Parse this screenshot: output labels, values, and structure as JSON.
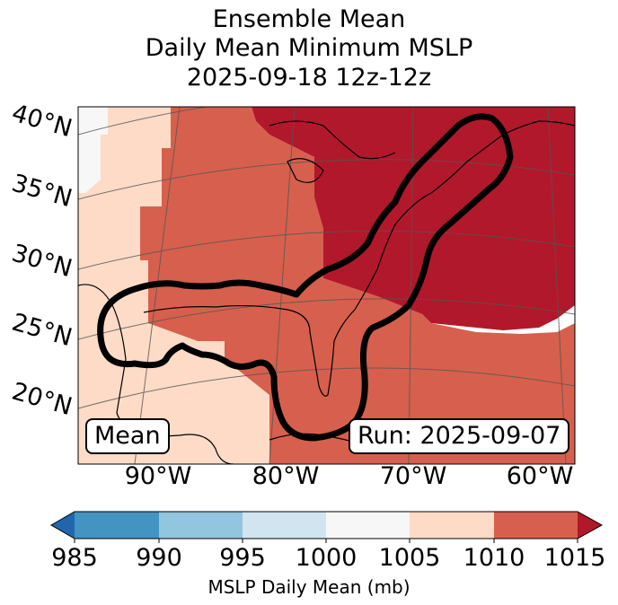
{
  "title": {
    "line1": "Ensemble Mean",
    "line2": "Daily Mean Minimum MSLP",
    "line3": "2025-09-18 12z-12z"
  },
  "map": {
    "lat_labels": [
      "40°N",
      "35°N",
      "30°N",
      "25°N",
      "20°N"
    ],
    "lon_labels": [
      "90°W",
      "80°W",
      "70°W",
      "60°W"
    ],
    "left_box": "Mean",
    "right_box": "Run: 2025-09-07",
    "regions": [
      {
        "name": "lightest-region",
        "mslp_range": "1000-1005"
      },
      {
        "name": "light-salmon-region",
        "mslp_range": "1005-1010"
      },
      {
        "name": "medium-red-region",
        "mslp_range": "1010-1015"
      },
      {
        "name": "dark-red-region",
        "mslp_range": ">1015"
      }
    ]
  },
  "colorbar": {
    "label": "MSLP Daily Mean (mb)",
    "ticks": [
      "985",
      "990",
      "995",
      "1000",
      "1005",
      "1010",
      "1015"
    ],
    "colors": {
      "below": "#2166ac",
      "c985_990": "#4393c3",
      "c990_995": "#92c5de",
      "c995_1000": "#d1e5f0",
      "c1000_1005": "#f7f7f7",
      "c1005_1010": "#fddbc7",
      "c1010_1015": "#d6604d",
      "above": "#b2182b"
    }
  }
}
